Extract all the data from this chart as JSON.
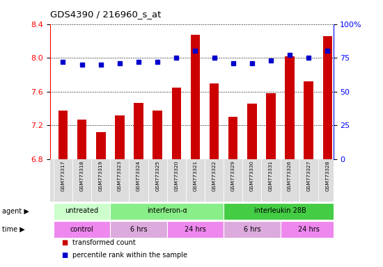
{
  "title": "GDS4390 / 216960_s_at",
  "samples": [
    "GSM773317",
    "GSM773318",
    "GSM773319",
    "GSM773323",
    "GSM773324",
    "GSM773325",
    "GSM773320",
    "GSM773321",
    "GSM773322",
    "GSM773329",
    "GSM773330",
    "GSM773331",
    "GSM773326",
    "GSM773327",
    "GSM773328"
  ],
  "transformed_count": [
    7.38,
    7.27,
    7.12,
    7.32,
    7.47,
    7.38,
    7.65,
    8.27,
    7.7,
    7.3,
    7.46,
    7.58,
    8.02,
    7.72,
    8.26
  ],
  "percentile_rank": [
    72,
    70,
    70,
    71,
    72,
    72,
    75,
    80,
    75,
    71,
    71,
    73,
    77,
    75,
    80
  ],
  "bar_color": "#cc0000",
  "dot_color": "#0000cc",
  "ylim_left": [
    6.8,
    8.4
  ],
  "ylim_right": [
    0,
    100
  ],
  "yticks_left": [
    6.8,
    7.2,
    7.6,
    8.0,
    8.4
  ],
  "yticks_right": [
    0,
    25,
    50,
    75,
    100
  ],
  "ytick_labels_right": [
    "0",
    "25",
    "50",
    "75",
    "100%"
  ],
  "agent_groups": [
    {
      "label": "untreated",
      "start": 0,
      "end": 2,
      "color": "#ccffcc"
    },
    {
      "label": "interferon-α",
      "start": 3,
      "end": 8,
      "color": "#88ee88"
    },
    {
      "label": "interleukin 28B",
      "start": 9,
      "end": 14,
      "color": "#44cc44"
    }
  ],
  "time_groups": [
    {
      "label": "control",
      "start": 0,
      "end": 2,
      "color": "#ee88ee"
    },
    {
      "label": "6 hrs",
      "start": 3,
      "end": 5,
      "color": "#ddaadd"
    },
    {
      "label": "24 hrs",
      "start": 6,
      "end": 8,
      "color": "#ee88ee"
    },
    {
      "label": "6 hrs",
      "start": 9,
      "end": 11,
      "color": "#ddaadd"
    },
    {
      "label": "24 hrs",
      "start": 12,
      "end": 14,
      "color": "#ee88ee"
    }
  ],
  "legend_items": [
    {
      "color": "#cc0000",
      "label": "transformed count"
    },
    {
      "color": "#0000cc",
      "label": "percentile rank within the sample"
    }
  ],
  "agent_label": "agent ▶",
  "time_label": "time ▶",
  "background_color": "#ffffff",
  "sample_bg_color": "#dddddd",
  "xlim": [
    -0.7,
    14.3
  ]
}
